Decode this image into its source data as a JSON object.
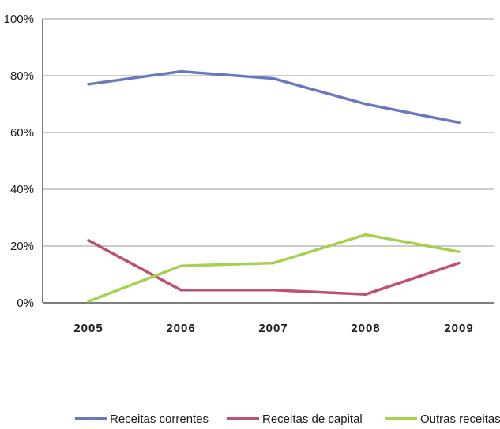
{
  "chart_data": {
    "type": "line",
    "title": "",
    "xlabel": "",
    "ylabel": "",
    "categories": [
      "2005",
      "2006",
      "2007",
      "2008",
      "2009"
    ],
    "y_ticks": [
      "0%",
      "20%",
      "40%",
      "60%",
      "80%",
      "100%"
    ],
    "ylim": [
      0,
      100
    ],
    "grid": true,
    "legend_position": "bottom",
    "series": [
      {
        "name": "Receitas correntes",
        "color": "#6a79bf",
        "values": [
          77,
          81.5,
          79,
          70,
          63.5
        ]
      },
      {
        "name": "Receitas de capital",
        "color": "#bf4f78",
        "values": [
          22,
          4.5,
          4.5,
          3,
          14
        ]
      },
      {
        "name": "Outras receitas",
        "color": "#a6d04f",
        "values": [
          0.5,
          13,
          14,
          24,
          18
        ]
      }
    ]
  }
}
